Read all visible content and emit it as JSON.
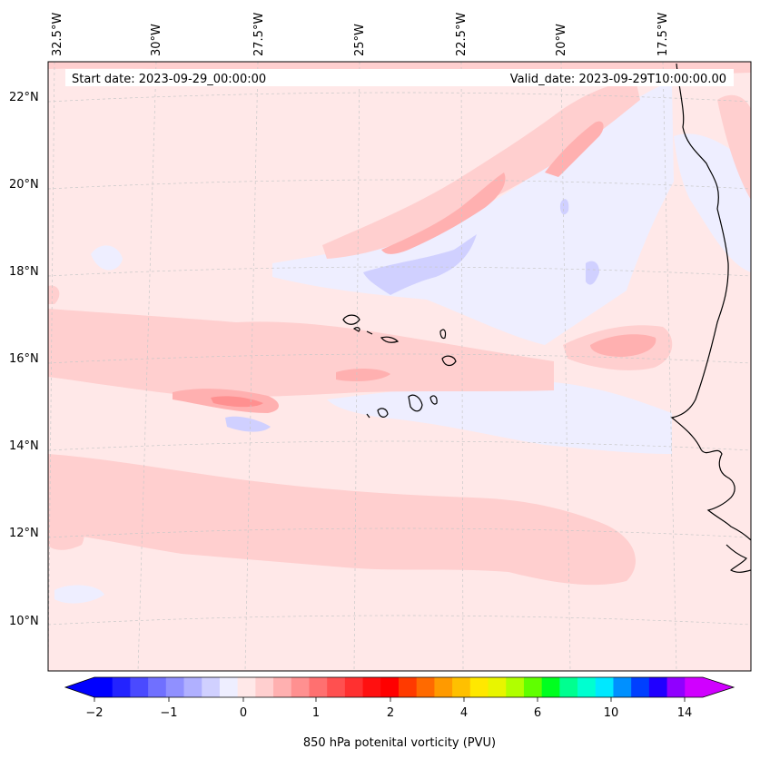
{
  "header": {
    "start_date": "Start date: 2023-09-29_00:00:00",
    "valid_date": "Valid_date: 2023-09-29T10:00:00.00"
  },
  "map": {
    "lon_labels": [
      "32.5°W",
      "30°W",
      "27.5°W",
      "25°W",
      "22.5°W",
      "20°W",
      "17.5°W"
    ],
    "lat_labels": [
      "22°N",
      "20°N",
      "18°N",
      "16°N",
      "14°N",
      "12°N",
      "10°N"
    ],
    "gridlines": "dashed-light-gray",
    "projection": "lambert-conformal",
    "field": "potential vorticity at 850 hPa"
  },
  "colorbar": {
    "label": "850 hPa potenital vorticity (PVU)",
    "ticks": [
      "−2",
      "−1",
      "0",
      "1",
      "2",
      "4",
      "6",
      "10",
      "14"
    ],
    "extend": "both",
    "colors": [
      "#0000ff",
      "#2323ff",
      "#4a4aff",
      "#7070ff",
      "#9090ff",
      "#b0b0ff",
      "#d0d0ff",
      "#eeeeff",
      "#ffe8e8",
      "#ffcfcf",
      "#ffb0b0",
      "#ff9090",
      "#ff7070",
      "#ff5050",
      "#ff3030",
      "#ff1010",
      "#ff0000",
      "#ff3a00",
      "#ff6a00",
      "#ff9a00",
      "#ffc000",
      "#ffe800",
      "#e8f500",
      "#b0ff00",
      "#60ff00",
      "#00ff20",
      "#00ff90",
      "#00ffd0",
      "#00e8ff",
      "#0090ff",
      "#0040ff",
      "#2000ff",
      "#9000ff",
      "#d000ff"
    ],
    "under_color": "#0000ff",
    "over_color": "#d000ff"
  }
}
